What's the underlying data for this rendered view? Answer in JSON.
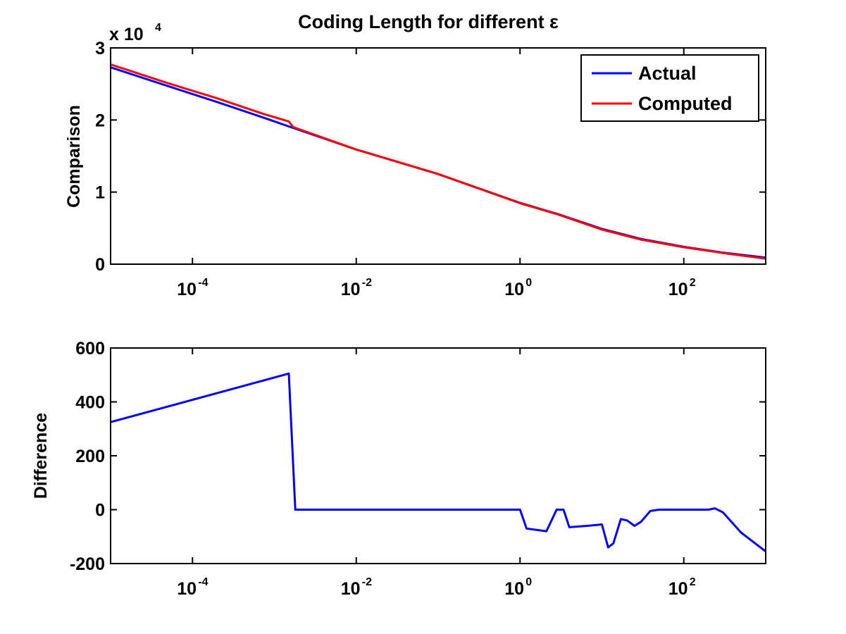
{
  "chart_data": [
    {
      "type": "line",
      "title": "Coding Length for different ε",
      "xlabel": "",
      "ylabel": "Comparison",
      "xscale": "log",
      "xlim": [
        1e-05,
        1000
      ],
      "ylim": [
        0,
        30000
      ],
      "y_multiplier_label": {
        "prefix": "x 10",
        "exponent": "4"
      },
      "x_ticks": [
        {
          "value": 0.0001,
          "base": "10",
          "exp": "-4"
        },
        {
          "value": 0.01,
          "base": "10",
          "exp": "-2"
        },
        {
          "value": 1,
          "base": "10",
          "exp": "0"
        },
        {
          "value": 100,
          "base": "10",
          "exp": "2"
        }
      ],
      "y_ticks": [
        {
          "value": 0,
          "label": "0"
        },
        {
          "value": 10000,
          "label": "1"
        },
        {
          "value": 20000,
          "label": "2"
        },
        {
          "value": 30000,
          "label": "3"
        }
      ],
      "grid": false,
      "legend": "top-right",
      "series": [
        {
          "name": "Actual",
          "color": "#0000ff",
          "x": [
            1e-05,
            5e-05,
            0.0002,
            0.00075,
            0.0015,
            0.01,
            0.1,
            1,
            3,
            10,
            30,
            100,
            300,
            1000
          ],
          "y": [
            27300,
            24700,
            22500,
            20300,
            19100,
            15900,
            12500,
            8500,
            6900,
            4900,
            3500,
            2400,
            1600,
            900
          ]
        },
        {
          "name": "Computed",
          "color": "#ff0000",
          "x": [
            1e-05,
            5e-05,
            0.0002,
            0.00075,
            0.0015,
            0.0017,
            0.01,
            0.1,
            1,
            3,
            10,
            30,
            100,
            300,
            1000
          ],
          "y": [
            27700,
            25100,
            23000,
            20800,
            19800,
            19000,
            15900,
            12500,
            8450,
            6850,
            4800,
            3400,
            2350,
            1550,
            750
          ]
        }
      ]
    },
    {
      "type": "line",
      "title": "",
      "xlabel": "",
      "ylabel": "Difference",
      "xscale": "log",
      "xlim": [
        1e-05,
        1000
      ],
      "ylim": [
        -200,
        600
      ],
      "x_ticks": [
        {
          "value": 0.0001,
          "base": "10",
          "exp": "-4"
        },
        {
          "value": 0.01,
          "base": "10",
          "exp": "-2"
        },
        {
          "value": 1,
          "base": "10",
          "exp": "0"
        },
        {
          "value": 100,
          "base": "10",
          "exp": "2"
        }
      ],
      "y_ticks": [
        {
          "value": -200,
          "label": "-200"
        },
        {
          "value": 0,
          "label": "0"
        },
        {
          "value": 200,
          "label": "200"
        },
        {
          "value": 400,
          "label": "400"
        },
        {
          "value": 600,
          "label": "600"
        }
      ],
      "grid": false,
      "series": [
        {
          "color": "#0000ff",
          "x": [
            1e-05,
            0.0015,
            0.0018,
            0.0019,
            1.0,
            1.2,
            2.1,
            2.8,
            3.4,
            4.0,
            6.6,
            10,
            11.9,
            13.8,
            17,
            20.3,
            25,
            30,
            39,
            50,
            100,
            200,
            240,
            300,
            500,
            1000
          ],
          "y": [
            325,
            505,
            0,
            0,
            0,
            -70,
            -80,
            0,
            0,
            -65,
            -60,
            -55,
            -140,
            -125,
            -35,
            -40,
            -60,
            -45,
            -5,
            0,
            0,
            0,
            5,
            -10,
            -85,
            -155
          ]
        }
      ]
    }
  ]
}
